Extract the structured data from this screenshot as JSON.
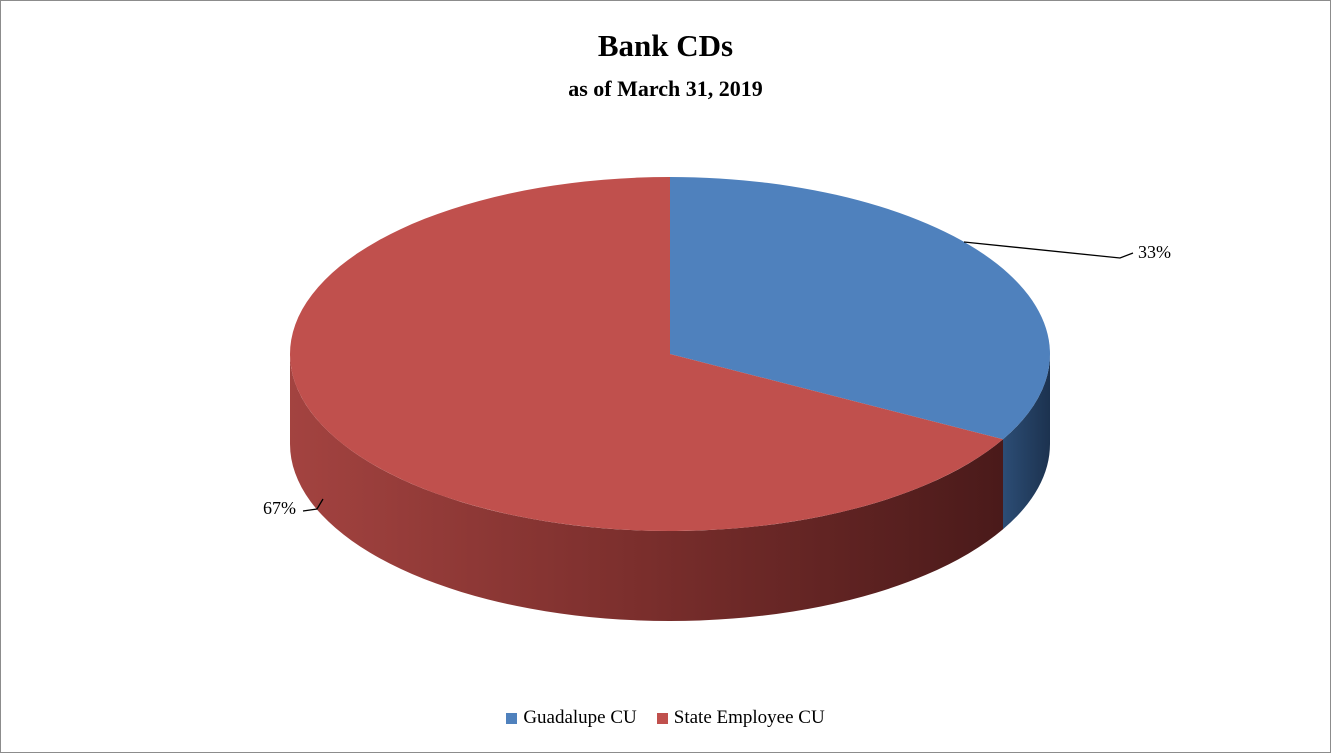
{
  "chart_data": {
    "type": "pie",
    "title": "Bank CDs",
    "subtitle": "as of March 31, 2019",
    "slices": [
      {
        "name": "Guadalupe CU",
        "value": 33,
        "label": "33%",
        "color": "#4f81bd",
        "side_color": "#243f60"
      },
      {
        "name": "State Employee CU",
        "value": 67,
        "label": "67%",
        "color": "#c0504d",
        "side_color": "#632523"
      }
    ],
    "legend_position": "bottom",
    "style": "3d"
  }
}
